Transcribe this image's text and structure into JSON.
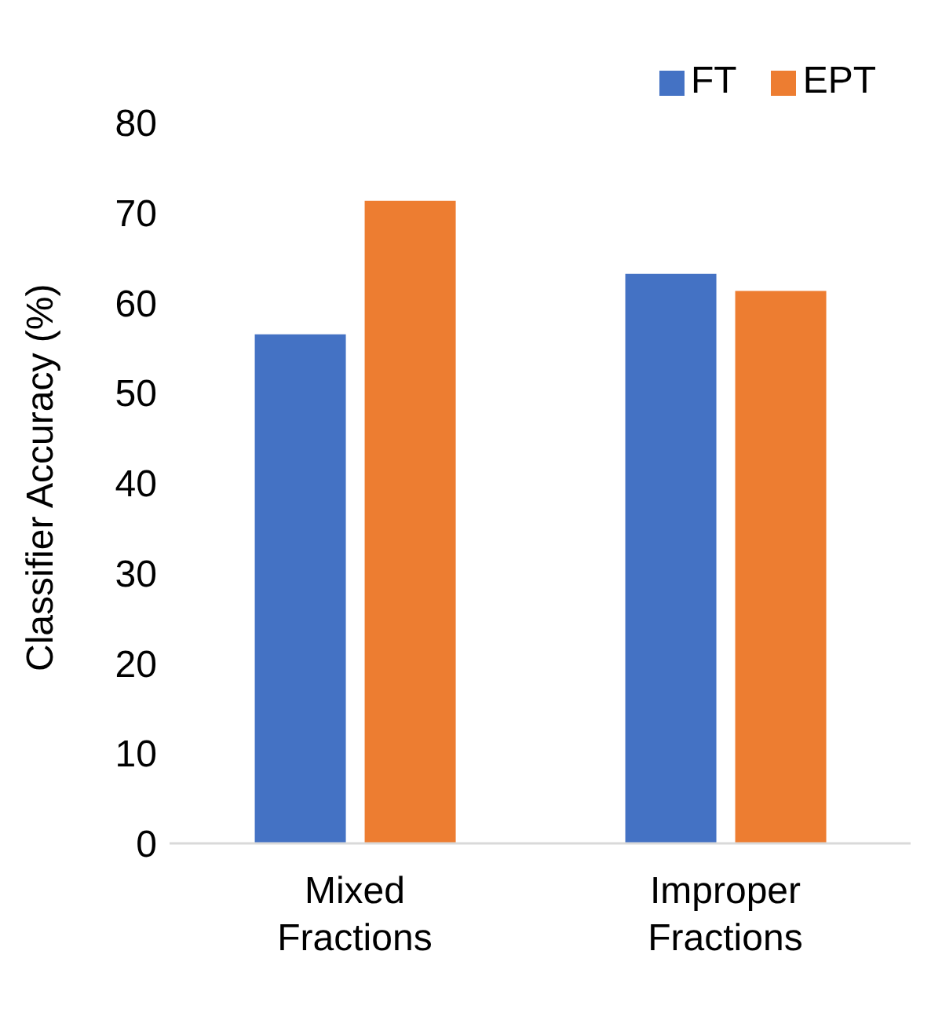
{
  "chart_data": {
    "type": "bar",
    "ylabel": "Classifier Accuracy (%)",
    "categories": [
      "Mixed\nFractions",
      "Improper\nFractions"
    ],
    "series": [
      {
        "name": "FT",
        "color": "#4472c4",
        "values": [
          56.5,
          63.2
        ]
      },
      {
        "name": "EPT",
        "color": "#ed7d31",
        "values": [
          71.3,
          61.3
        ]
      }
    ],
    "ylim": [
      0,
      80
    ],
    "yticks": [
      0,
      10,
      20,
      30,
      40,
      50,
      60,
      70,
      80
    ],
    "grid": false,
    "legend": "top right"
  }
}
